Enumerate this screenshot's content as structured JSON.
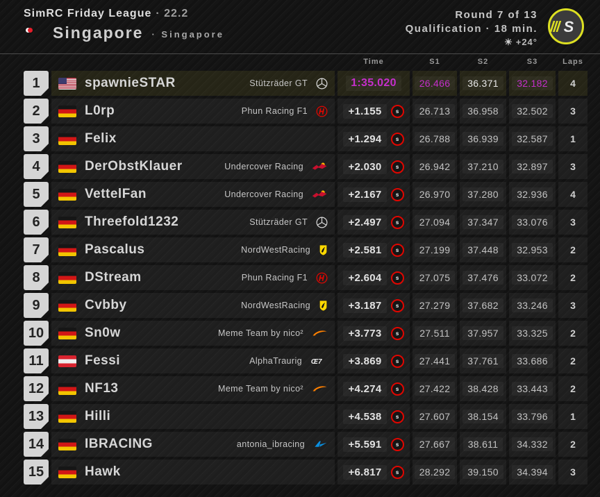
{
  "header": {
    "league_name": "SimRC Friday League",
    "league_version": "· 22.2",
    "track_name": "Singapore",
    "track_sub": "· Singapore",
    "round_label": "Round 7 of 13",
    "session_label": "Qualification · 18 min.",
    "weather_icon": "☀",
    "temperature": "+24°",
    "logo_letter": "S"
  },
  "columns": {
    "time": "Time",
    "s1": "S1",
    "s2": "S2",
    "s3": "S3",
    "laps": "Laps"
  },
  "colors": {
    "session_best_purple": "#c52fcb",
    "tire_soft_red": "#e10600",
    "logo_yellow": "#dde022",
    "leader_row_tint": "rgba(208,200,60,0.10)"
  },
  "rows": [
    {
      "pos": "1",
      "flag": "us",
      "name": "spawnieSTAR",
      "team": "Stützräder GT",
      "team_logo": "mercedes",
      "time": "1:35.020",
      "tire": "",
      "s1": "26.466",
      "s2": "36.371",
      "s3": "32.182",
      "laps": "4",
      "leader": true,
      "best": {
        "time": true,
        "s1": true,
        "s2": false,
        "s3": true
      },
      "s2_bright": true
    },
    {
      "pos": "2",
      "flag": "de",
      "name": "L0rp",
      "team": "Phun Racing F1",
      "team_logo": "haas",
      "time": "+1.155",
      "tire": "S",
      "s1": "26.713",
      "s2": "36.958",
      "s3": "32.502",
      "laps": "3"
    },
    {
      "pos": "3",
      "flag": "de",
      "name": "Felix",
      "team": "",
      "team_logo": "",
      "time": "+1.294",
      "tire": "S",
      "s1": "26.788",
      "s2": "36.939",
      "s3": "32.587",
      "laps": "1"
    },
    {
      "pos": "4",
      "flag": "de",
      "name": "DerObstKlauer",
      "team": "Undercover Racing",
      "team_logo": "redbull",
      "time": "+2.030",
      "tire": "S",
      "s1": "26.942",
      "s2": "37.210",
      "s3": "32.897",
      "laps": "3"
    },
    {
      "pos": "5",
      "flag": "de",
      "name": "VettelFan",
      "team": "Undercover Racing",
      "team_logo": "redbull",
      "time": "+2.167",
      "tire": "S",
      "s1": "26.970",
      "s2": "37.280",
      "s3": "32.936",
      "laps": "4"
    },
    {
      "pos": "6",
      "flag": "de",
      "name": "Threefold1232",
      "team": "Stützräder GT",
      "team_logo": "mercedes",
      "time": "+2.497",
      "tire": "S",
      "s1": "27.094",
      "s2": "37.347",
      "s3": "33.076",
      "laps": "3"
    },
    {
      "pos": "7",
      "flag": "de",
      "name": "Pascalus",
      "team": "NordWestRacing",
      "team_logo": "ferrari",
      "time": "+2.581",
      "tire": "S",
      "s1": "27.199",
      "s2": "37.448",
      "s3": "32.953",
      "laps": "2"
    },
    {
      "pos": "8",
      "flag": "de",
      "name": "DStream",
      "team": "Phun Racing F1",
      "team_logo": "haas",
      "time": "+2.604",
      "tire": "S",
      "s1": "27.075",
      "s2": "37.476",
      "s3": "33.072",
      "laps": "2"
    },
    {
      "pos": "9",
      "flag": "de",
      "name": "Cvbby",
      "team": "NordWestRacing",
      "team_logo": "ferrari",
      "time": "+3.187",
      "tire": "S",
      "s1": "27.279",
      "s2": "37.682",
      "s3": "33.246",
      "laps": "3"
    },
    {
      "pos": "10",
      "flag": "de",
      "name": "Sn0w",
      "team": "Meme Team by nico²",
      "team_logo": "mclaren",
      "time": "+3.773",
      "tire": "S",
      "s1": "27.511",
      "s2": "37.957",
      "s3": "33.325",
      "laps": "2"
    },
    {
      "pos": "11",
      "flag": "at",
      "name": "Fessi",
      "team": "AlphaTraurig",
      "team_logo": "alphatauri",
      "time": "+3.869",
      "tire": "S",
      "s1": "27.441",
      "s2": "37.761",
      "s3": "33.686",
      "laps": "2"
    },
    {
      "pos": "12",
      "flag": "de",
      "name": "NF13",
      "team": "Meme Team by nico²",
      "team_logo": "mclaren",
      "time": "+4.274",
      "tire": "S",
      "s1": "27.422",
      "s2": "38.428",
      "s3": "33.443",
      "laps": "2"
    },
    {
      "pos": "13",
      "flag": "de",
      "name": "Hilli",
      "team": "",
      "team_logo": "",
      "time": "+4.538",
      "tire": "S",
      "s1": "27.607",
      "s2": "38.154",
      "s3": "33.796",
      "laps": "1"
    },
    {
      "pos": "14",
      "flag": "de",
      "name": "IBRACING",
      "team": "antonia_ibracing",
      "team_logo": "alpine",
      "time": "+5.591",
      "tire": "S",
      "s1": "27.667",
      "s2": "38.611",
      "s3": "34.332",
      "laps": "2"
    },
    {
      "pos": "15",
      "flag": "de",
      "name": "Hawk",
      "team": "",
      "team_logo": "",
      "time": "+6.817",
      "tire": "S",
      "s1": "28.292",
      "s2": "39.150",
      "s3": "34.394",
      "laps": "3"
    }
  ]
}
